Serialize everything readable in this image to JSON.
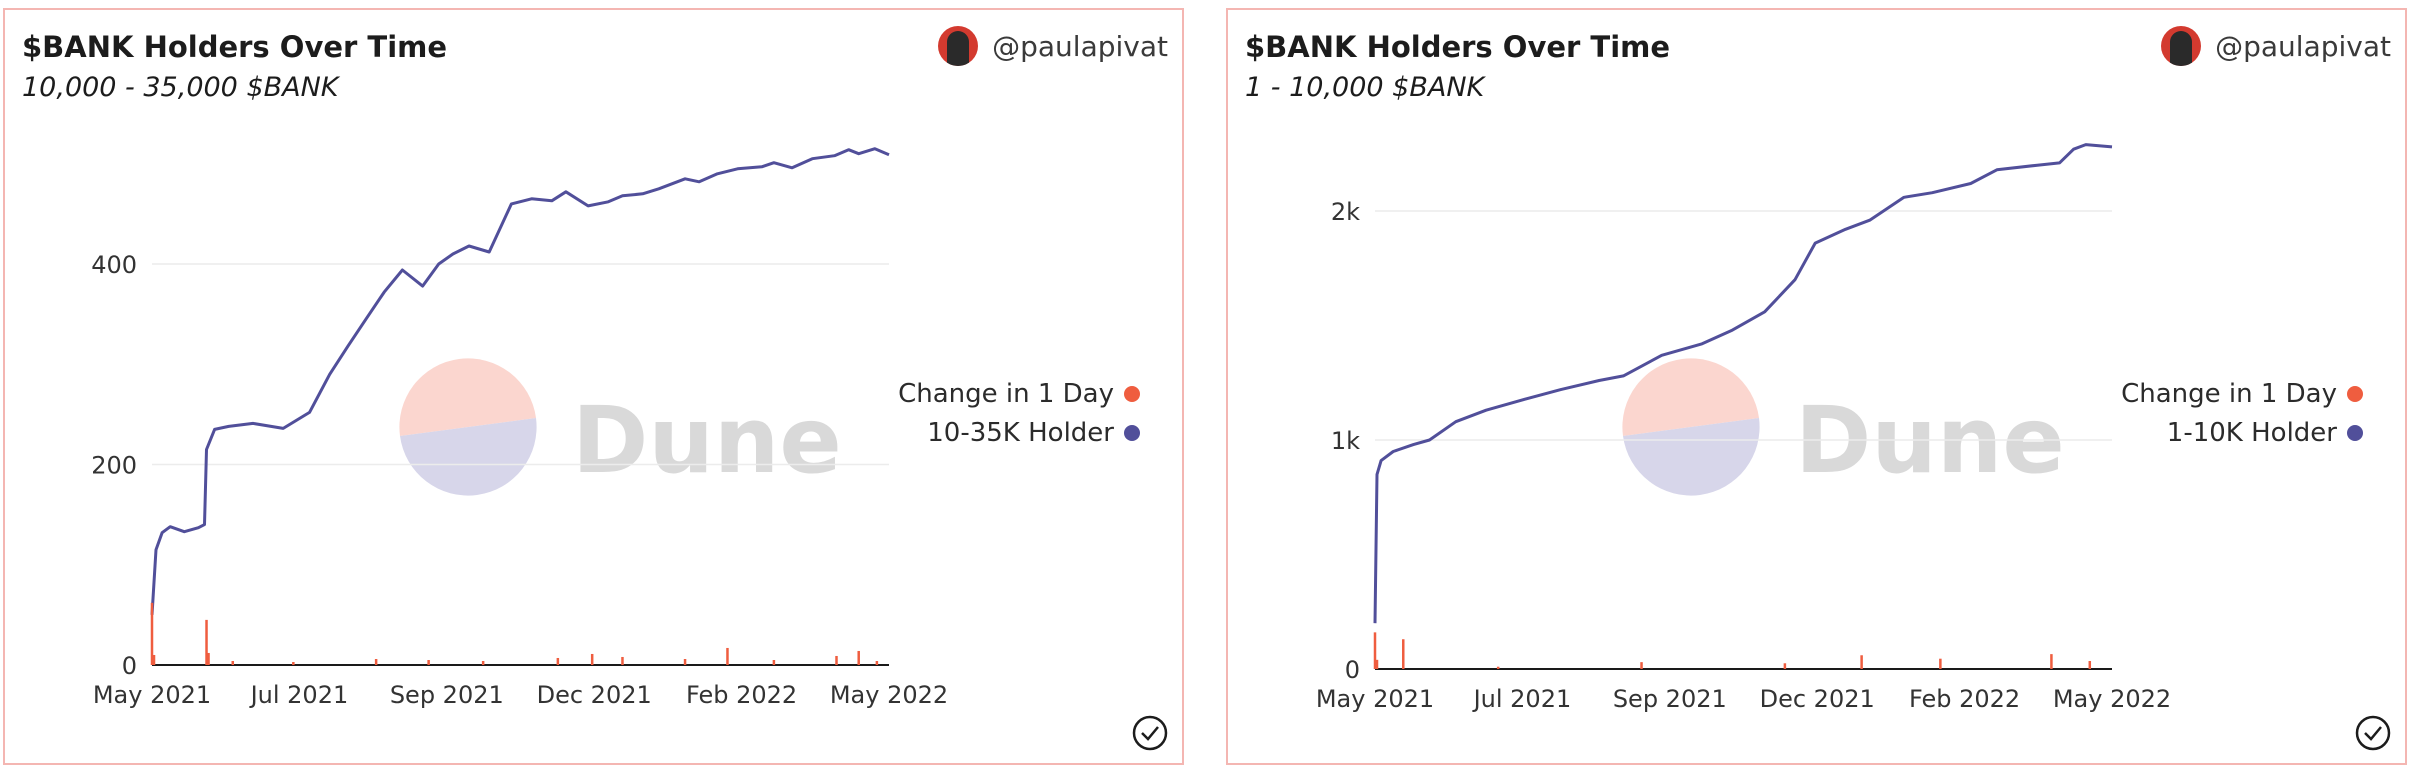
{
  "panels": [
    {
      "title": "$BANK Holders Over Time",
      "subtitle": "10,000 - 35,000 $BANK",
      "author": "@paulapivat",
      "watermark": "Dune",
      "legend": [
        {
          "label": "Change in 1 Day",
          "color": "#ef5d3f"
        },
        {
          "label": "10-35K Holder",
          "color": "#514f9a"
        }
      ]
    },
    {
      "title": "$BANK Holders Over Time",
      "subtitle": "1 - 10,000 $BANK",
      "author": "@paulapivat",
      "watermark": "Dune",
      "legend": [
        {
          "label": "Change in 1 Day",
          "color": "#ef5d3f"
        },
        {
          "label": "1-10K Holder",
          "color": "#514f9a"
        }
      ]
    }
  ],
  "chart_data": [
    {
      "type": "line",
      "title": "$BANK Holders Over Time",
      "subtitle": "10,000 - 35,000 $BANK",
      "x_ticks": [
        "May 2021",
        "Jul 2021",
        "Sep 2021",
        "Dec 2021",
        "Feb 2022",
        "May 2022"
      ],
      "y_ticks": [
        {
          "value": 0,
          "label": "0"
        },
        {
          "value": 200,
          "label": "200"
        },
        {
          "value": 400,
          "label": "400"
        }
      ],
      "ylim": [
        0,
        520
      ],
      "x_range": [
        "2021-05-01",
        "2022-05-01"
      ],
      "grid": true,
      "legend_position": "right",
      "series": [
        {
          "name": "10-35K Holder",
          "color": "#514f9a",
          "x": [
            "2021-05-01",
            "2021-05-03",
            "2021-05-06",
            "2021-05-10",
            "2021-05-17",
            "2021-05-24",
            "2021-05-27",
            "2021-05-28",
            "2021-06-01",
            "2021-06-08",
            "2021-06-20",
            "2021-07-05",
            "2021-07-18",
            "2021-07-28",
            "2021-08-06",
            "2021-08-15",
            "2021-08-24",
            "2021-09-02",
            "2021-09-12",
            "2021-09-20",
            "2021-09-27",
            "2021-10-05",
            "2021-10-15",
            "2021-10-26",
            "2021-11-05",
            "2021-11-15",
            "2021-11-22",
            "2021-12-03",
            "2021-12-13",
            "2021-12-20",
            "2021-12-30",
            "2022-01-07",
            "2022-01-20",
            "2022-01-27",
            "2022-02-05",
            "2022-02-15",
            "2022-02-27",
            "2022-03-05",
            "2022-03-14",
            "2022-03-24",
            "2022-04-04",
            "2022-04-11",
            "2022-04-16",
            "2022-04-24",
            "2022-05-01"
          ],
          "y": [
            50,
            115,
            132,
            138,
            133,
            137,
            140,
            215,
            235,
            238,
            241,
            236,
            252,
            290,
            318,
            345,
            372,
            394,
            378,
            400,
            410,
            418,
            412,
            460,
            465,
            463,
            472,
            458,
            462,
            468,
            470,
            475,
            485,
            482,
            490,
            495,
            497,
            501,
            496,
            505,
            508,
            514,
            510,
            515,
            509
          ]
        },
        {
          "name": "Change in 1 Day",
          "color": "#ef5d3f",
          "x": [
            "2021-05-01",
            "2021-05-02",
            "2021-05-28",
            "2021-05-29",
            "2021-06-10",
            "2021-07-10",
            "2021-08-20",
            "2021-09-15",
            "2021-10-12",
            "2021-11-18",
            "2021-12-05",
            "2021-12-20",
            "2022-01-20",
            "2022-02-10",
            "2022-03-05",
            "2022-04-05",
            "2022-04-16",
            "2022-04-25"
          ],
          "y": [
            62,
            10,
            45,
            12,
            4,
            3,
            6,
            5,
            4,
            7,
            11,
            8,
            6,
            17,
            5,
            9,
            14,
            4
          ]
        }
      ]
    },
    {
      "type": "line",
      "title": "$BANK Holders Over Time",
      "subtitle": "1 - 10,000 $BANK",
      "x_ticks": [
        "May 2021",
        "Jul 2021",
        "Sep 2021",
        "Dec 2021",
        "Feb 2022",
        "May 2022"
      ],
      "y_ticks": [
        {
          "value": 0,
          "label": "0"
        },
        {
          "value": 1000,
          "label": "1k"
        },
        {
          "value": 2000,
          "label": "2k"
        }
      ],
      "ylim": [
        0,
        2300
      ],
      "x_range": [
        "2021-05-01",
        "2022-05-01"
      ],
      "grid": true,
      "legend_position": "right",
      "series": [
        {
          "name": "1-10K Holder",
          "color": "#514f9a",
          "x": [
            "2021-05-01",
            "2021-05-02",
            "2021-05-04",
            "2021-05-10",
            "2021-05-20",
            "2021-05-28",
            "2021-06-10",
            "2021-06-25",
            "2021-07-15",
            "2021-08-01",
            "2021-08-20",
            "2021-09-01",
            "2021-09-20",
            "2021-10-10",
            "2021-10-25",
            "2021-11-10",
            "2021-11-25",
            "2021-12-05",
            "2021-12-20",
            "2022-01-01",
            "2022-01-18",
            "2022-02-01",
            "2022-02-20",
            "2022-03-05",
            "2022-03-25",
            "2022-04-05",
            "2022-04-12",
            "2022-04-18",
            "2022-05-01"
          ],
          "y": [
            200,
            850,
            910,
            950,
            980,
            1000,
            1080,
            1130,
            1180,
            1220,
            1260,
            1280,
            1370,
            1420,
            1480,
            1560,
            1700,
            1860,
            1920,
            1960,
            2060,
            2080,
            2120,
            2180,
            2200,
            2210,
            2270,
            2290,
            2280
          ]
        },
        {
          "name": "Change in 1 Day",
          "color": "#ef5d3f",
          "x": [
            "2021-05-01",
            "2021-05-02",
            "2021-05-15",
            "2021-07-01",
            "2021-09-10",
            "2021-11-20",
            "2021-12-28",
            "2022-02-05",
            "2022-04-01",
            "2022-04-20"
          ],
          "y": [
            160,
            40,
            130,
            10,
            30,
            25,
            60,
            45,
            65,
            35
          ]
        }
      ]
    }
  ]
}
